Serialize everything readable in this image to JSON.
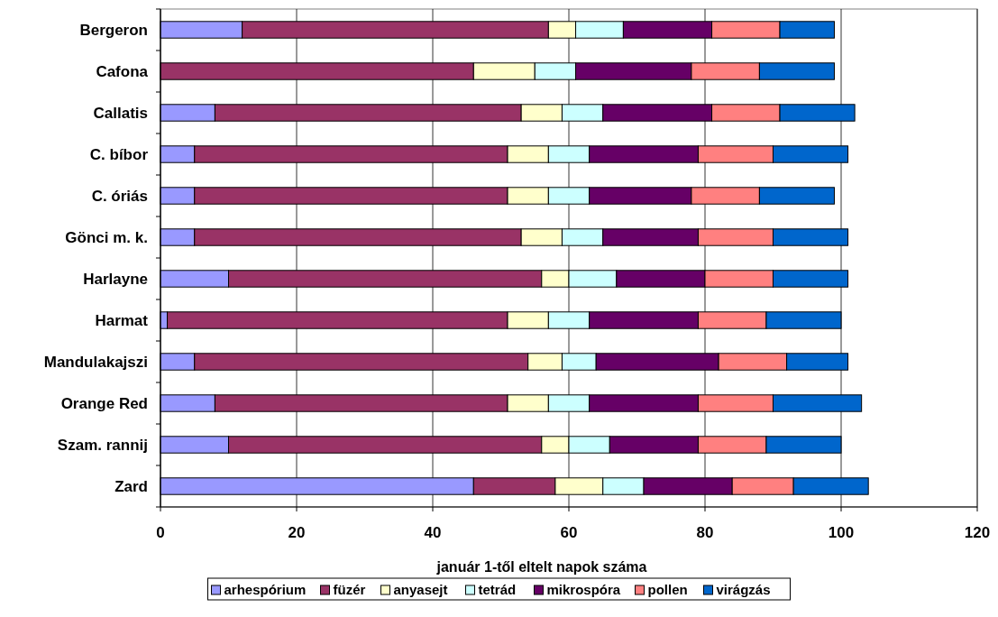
{
  "chart_data": {
    "type": "bar",
    "orientation": "horizontal",
    "stacked": true,
    "xlabel": "január 1-től eltelt napok száma",
    "categories": [
      "Bergeron",
      "Cafona",
      "Callatis",
      "C. bíbor",
      "C. óriás",
      "Gönci m. k.",
      "Harlayne",
      "Harmat",
      "Mandulakajszi",
      "Orange Red",
      "Szam. rannij",
      "Zard"
    ],
    "series": [
      {
        "name": "arhespórium",
        "color": "#9999ff",
        "values": [
          12,
          0,
          8,
          5,
          5,
          5,
          10,
          1,
          5,
          8,
          10,
          46
        ]
      },
      {
        "name": "füzér",
        "color": "#993366",
        "values": [
          45,
          46,
          45,
          46,
          46,
          48,
          46,
          50,
          49,
          43,
          46,
          12
        ]
      },
      {
        "name": "anyasejt",
        "color": "#ffffcc",
        "values": [
          4,
          9,
          6,
          6,
          6,
          6,
          4,
          6,
          5,
          6,
          4,
          7
        ]
      },
      {
        "name": "tetrád",
        "color": "#ccffff",
        "values": [
          7,
          6,
          6,
          6,
          6,
          6,
          7,
          6,
          5,
          6,
          6,
          6
        ]
      },
      {
        "name": "mikrospóra",
        "color": "#660066",
        "values": [
          13,
          17,
          16,
          16,
          15,
          14,
          13,
          16,
          18,
          16,
          13,
          13
        ]
      },
      {
        "name": "pollen",
        "color": "#ff8080",
        "values": [
          10,
          10,
          10,
          11,
          10,
          11,
          10,
          10,
          10,
          11,
          10,
          9
        ]
      },
      {
        "name": "virágzás",
        "color": "#0066cc",
        "values": [
          8,
          11,
          11,
          11,
          11,
          11,
          11,
          11,
          9,
          13,
          11,
          11
        ]
      }
    ],
    "xlim": [
      0,
      120
    ],
    "xticks": [
      0,
      20,
      40,
      60,
      80,
      100,
      120
    ],
    "grid": "x",
    "legend": "bottom"
  }
}
